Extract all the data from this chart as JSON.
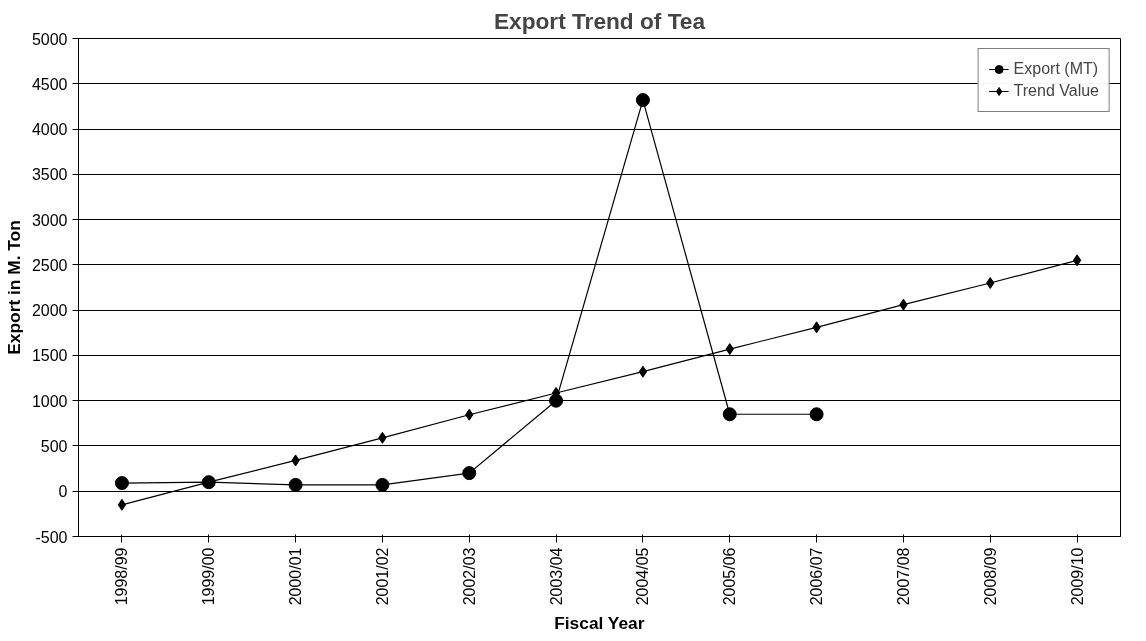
{
  "chart_data": {
    "type": "line",
    "title": "Export Trend of Tea",
    "xlabel": "Fiscal Year",
    "ylabel": "Export in M. Ton",
    "categories": [
      "1998/99",
      "1999/00",
      "2000/01",
      "2001/02",
      "2002/03",
      "2003/04",
      "2004/05",
      "2005/06",
      "2006/07",
      "2007/08",
      "2008/09",
      "2009/10"
    ],
    "series": [
      {
        "name": "Export (MT)",
        "color": "#000000",
        "marker": "circle",
        "values": [
          90,
          100,
          70,
          70,
          200,
          1000,
          4320,
          850,
          850,
          null,
          null,
          null
        ]
      },
      {
        "name": "Trend Value",
        "color": "#000000",
        "marker": "diamond",
        "values": [
          -150,
          100,
          340,
          590,
          845,
          1085,
          1320,
          1570,
          1810,
          2060,
          2300,
          2550
        ]
      }
    ],
    "ylim": [
      -500,
      5000
    ],
    "yticks": [
      -500,
      0,
      500,
      1000,
      1500,
      2000,
      2500,
      3000,
      3500,
      4000,
      4500,
      5000
    ],
    "grid": "y",
    "legend": "top right",
    "line_style": "solid"
  }
}
